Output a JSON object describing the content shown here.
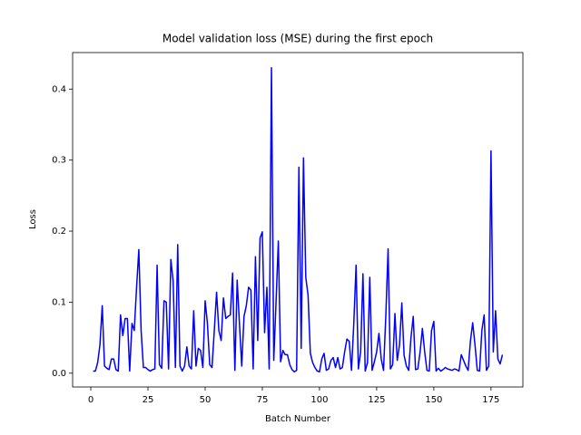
{
  "chart_data": {
    "type": "line",
    "title": "Model validation loss (MSE) during the first epoch",
    "xlabel": "Batch Number",
    "ylabel": "Loss",
    "x": [
      1,
      2,
      3,
      4,
      5,
      6,
      7,
      8,
      9,
      10,
      11,
      12,
      13,
      14,
      15,
      16,
      17,
      18,
      19,
      20,
      21,
      22,
      23,
      24,
      25,
      26,
      27,
      28,
      29,
      30,
      31,
      32,
      33,
      34,
      35,
      36,
      37,
      38,
      39,
      40,
      41,
      42,
      43,
      44,
      45,
      46,
      47,
      48,
      49,
      50,
      51,
      52,
      53,
      54,
      55,
      56,
      57,
      58,
      59,
      60,
      61,
      62,
      63,
      64,
      65,
      66,
      67,
      68,
      69,
      70,
      71,
      72,
      73,
      74,
      75,
      76,
      77,
      78,
      79,
      80,
      81,
      82,
      83,
      84,
      85,
      86,
      87,
      88,
      89,
      90,
      91,
      92,
      93,
      94,
      95,
      96,
      97,
      98,
      99,
      100,
      101,
      102,
      103,
      104,
      105,
      106,
      107,
      108,
      109,
      110,
      111,
      112,
      113,
      114,
      115,
      116,
      117,
      118,
      119,
      120,
      121,
      122,
      123,
      124,
      125,
      126,
      127,
      128,
      129,
      130,
      131,
      132,
      133,
      134,
      135,
      136,
      137,
      138,
      139,
      140,
      141,
      142,
      143,
      144,
      145,
      146,
      147,
      148,
      149,
      150,
      151,
      152,
      153,
      154,
      155,
      156,
      157,
      158,
      159,
      160,
      161,
      162,
      163,
      164,
      165,
      166,
      167,
      168,
      169,
      170,
      171,
      172,
      173,
      174,
      175,
      176,
      177,
      178,
      179,
      180
    ],
    "series": [
      {
        "color": "#0000ff",
        "values": [
          0.003,
          0.003,
          0.015,
          0.04,
          0.095,
          0.01,
          0.007,
          0.005,
          0.02,
          0.02,
          0.005,
          0.003,
          0.082,
          0.053,
          0.077,
          0.077,
          0.003,
          0.07,
          0.06,
          0.12,
          0.174,
          0.06,
          0.008,
          0.008,
          0.005,
          0.003,
          0.005,
          0.006,
          0.152,
          0.012,
          0.007,
          0.102,
          0.1,
          0.006,
          0.16,
          0.13,
          0.008,
          0.181,
          0.01,
          0.003,
          0.01,
          0.037,
          0.01,
          0.006,
          0.088,
          0.01,
          0.035,
          0.032,
          0.008,
          0.102,
          0.07,
          0.012,
          0.008,
          0.06,
          0.114,
          0.06,
          0.046,
          0.106,
          0.077,
          0.08,
          0.082,
          0.141,
          0.004,
          0.131,
          0.07,
          0.01,
          0.08,
          0.095,
          0.121,
          0.117,
          0.006,
          0.164,
          0.046,
          0.19,
          0.199,
          0.057,
          0.121,
          0.006,
          0.43,
          0.018,
          0.1,
          0.186,
          0.016,
          0.032,
          0.026,
          0.026,
          0.012,
          0.005,
          0.002,
          0.004,
          0.29,
          0.035,
          0.303,
          0.135,
          0.11,
          0.028,
          0.015,
          0.008,
          0.003,
          0.002,
          0.02,
          0.028,
          0.004,
          0.006,
          0.018,
          0.022,
          0.008,
          0.022,
          0.006,
          0.008,
          0.03,
          0.048,
          0.045,
          0.004,
          0.07,
          0.152,
          0.006,
          0.03,
          0.14,
          0.003,
          0.015,
          0.135,
          0.004,
          0.016,
          0.03,
          0.056,
          0.02,
          0.004,
          0.08,
          0.175,
          0.006,
          0.012,
          0.084,
          0.018,
          0.04,
          0.099,
          0.025,
          0.01,
          0.004,
          0.05,
          0.08,
          0.005,
          0.006,
          0.03,
          0.063,
          0.03,
          0.004,
          0.003,
          0.06,
          0.073,
          0.003,
          0.007,
          0.003,
          0.005,
          0.008,
          0.006,
          0.005,
          0.004,
          0.006,
          0.005,
          0.003,
          0.026,
          0.018,
          0.01,
          0.004,
          0.045,
          0.071,
          0.04,
          0.004,
          0.003,
          0.06,
          0.082,
          0.004,
          0.01,
          0.313,
          0.03,
          0.088,
          0.02,
          0.013,
          0.026
        ]
      }
    ],
    "xlim": [
      -7.95,
      188.95
    ],
    "ylim": [
      -0.0194,
      0.4514
    ],
    "xticks": [
      0,
      25,
      50,
      75,
      100,
      125,
      150,
      175
    ],
    "yticks": [
      {
        "value": 0,
        "label": "0.0"
      },
      0.1,
      0.2,
      0.3,
      0.4
    ]
  }
}
